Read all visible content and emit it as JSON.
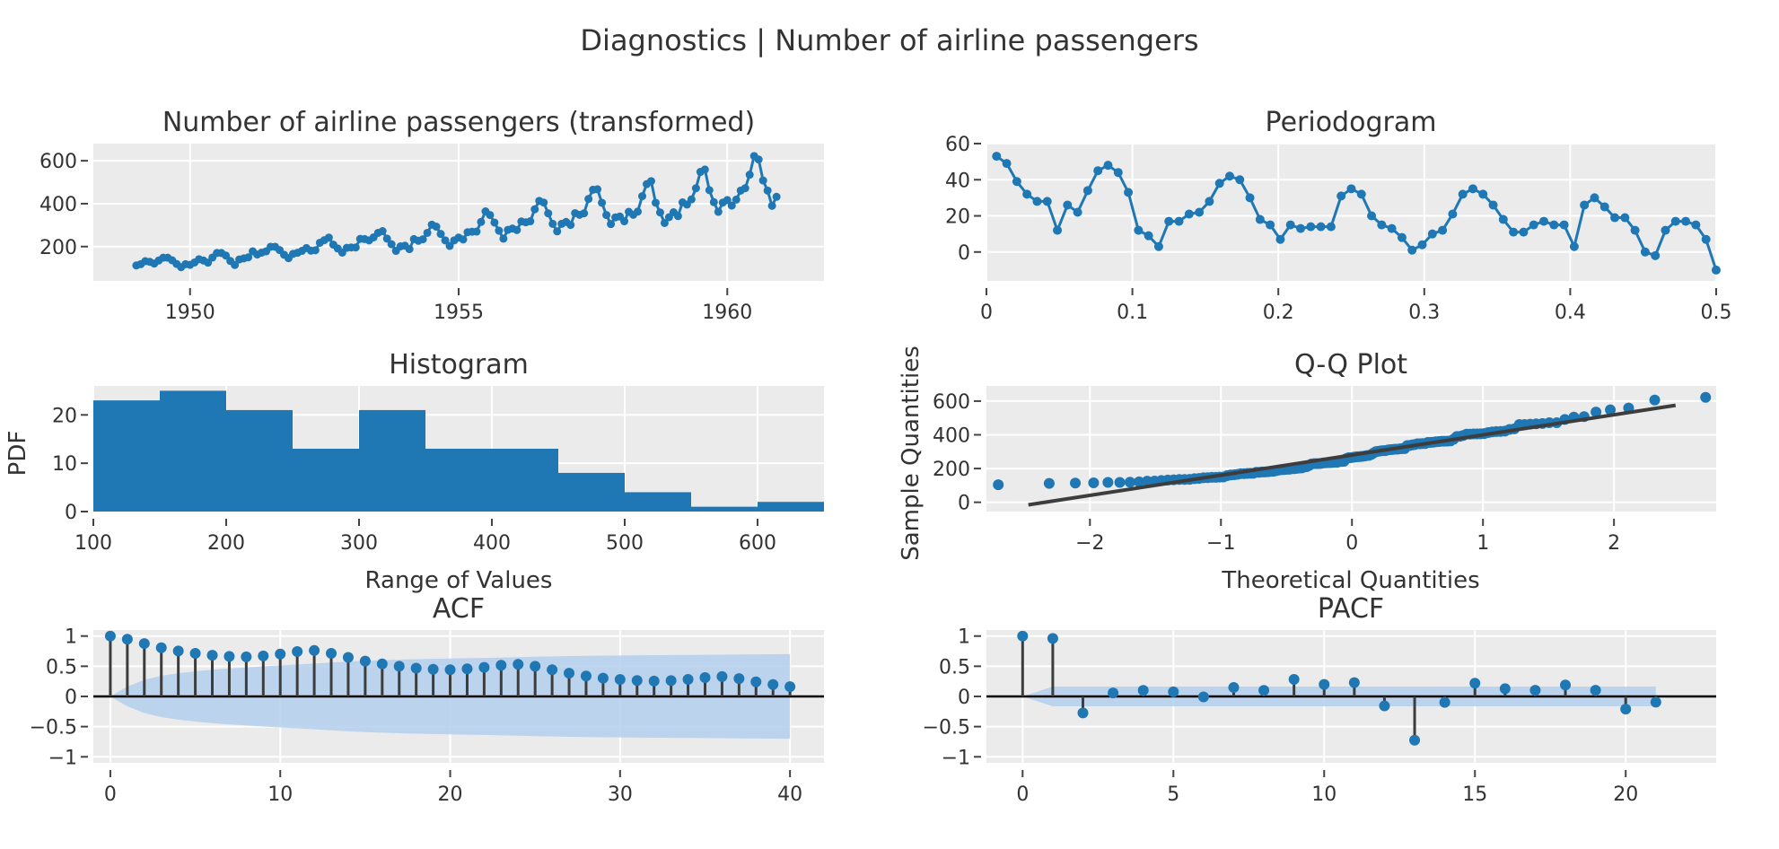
{
  "title": "Diagnostics | Number of airline passengers",
  "colors": {
    "marker": "#1f77b4",
    "stem": "#3d3d3d",
    "band": "#b3cfec",
    "plot_bg": "#ebebeb",
    "grid": "#ffffff",
    "fit_line": "#3d3d3d"
  },
  "chart_data": [
    {
      "id": "series",
      "type": "line",
      "title": "Number of airline passengers (transformed)",
      "xlabel": "",
      "ylabel": "",
      "x_start": "1949-01",
      "x_step": "month",
      "xticks": [
        1950,
        1955,
        1960
      ],
      "yticks": [
        200,
        400,
        600
      ],
      "xlim": [
        1948.2,
        1961.8
      ],
      "ylim": [
        40,
        680
      ],
      "grid": true,
      "values": [
        112,
        118,
        132,
        129,
        121,
        135,
        148,
        148,
        136,
        119,
        104,
        118,
        115,
        126,
        141,
        135,
        125,
        149,
        170,
        170,
        158,
        133,
        114,
        140,
        145,
        150,
        178,
        163,
        172,
        178,
        199,
        199,
        184,
        162,
        146,
        166,
        171,
        180,
        193,
        181,
        183,
        218,
        230,
        242,
        209,
        191,
        172,
        194,
        196,
        196,
        236,
        235,
        229,
        243,
        264,
        272,
        237,
        211,
        180,
        201,
        204,
        188,
        235,
        227,
        234,
        264,
        302,
        293,
        259,
        229,
        203,
        229,
        242,
        233,
        267,
        269,
        270,
        315,
        364,
        347,
        312,
        274,
        237,
        278,
        284,
        277,
        317,
        313,
        318,
        374,
        413,
        405,
        355,
        306,
        271,
        306,
        315,
        301,
        356,
        348,
        355,
        422,
        465,
        467,
        404,
        347,
        305,
        336,
        340,
        318,
        362,
        348,
        363,
        435,
        491,
        505,
        404,
        359,
        310,
        337,
        360,
        342,
        406,
        396,
        420,
        472,
        548,
        559,
        463,
        407,
        362,
        405,
        417,
        391,
        419,
        461,
        472,
        535,
        622,
        606,
        508,
        461,
        390,
        432
      ]
    },
    {
      "id": "periodogram",
      "type": "line",
      "title": "Periodogram",
      "xlabel": "",
      "ylabel": "",
      "xticks": [
        0,
        0.1,
        0.2,
        0.3,
        0.4,
        0.5
      ],
      "xtick_labels": [
        "0",
        "0.1",
        "0.2",
        "0.3",
        "0.4",
        "0.5"
      ],
      "yticks": [
        0,
        20,
        40,
        60
      ],
      "xlim": [
        0,
        0.5
      ],
      "ylim": [
        -16,
        60
      ],
      "grid": true,
      "x_step": 0.006944,
      "values": [
        53,
        49,
        39,
        32,
        28,
        28,
        12,
        26,
        22,
        34,
        45,
        48,
        44,
        33,
        12,
        9,
        3,
        17,
        17,
        21,
        22,
        28,
        38,
        42,
        40,
        30,
        18,
        15,
        7,
        15,
        13,
        14,
        14,
        14,
        31,
        35,
        32,
        20,
        15,
        13,
        8,
        1,
        4,
        10,
        12,
        21,
        32,
        35,
        32,
        26,
        18,
        11,
        11,
        15,
        17,
        15,
        15,
        3,
        26,
        30,
        25,
        19,
        19,
        12,
        0,
        -2,
        12,
        17,
        17,
        15,
        7,
        -10
      ]
    },
    {
      "id": "histogram",
      "type": "bar",
      "title": "Histogram",
      "xlabel": "Range of Values",
      "ylabel": "PDF",
      "xticks": [
        100,
        200,
        300,
        400,
        500,
        600
      ],
      "yticks": [
        0,
        10,
        20
      ],
      "xlim": [
        100,
        650
      ],
      "ylim": [
        0,
        26
      ],
      "grid": true,
      "bin_edges": [
        100,
        150,
        200,
        250,
        300,
        350,
        400,
        450,
        500,
        550,
        600,
        650
      ],
      "values": [
        23,
        25,
        21,
        13,
        21,
        13,
        13,
        8,
        4,
        1,
        2
      ]
    },
    {
      "id": "qq",
      "type": "scatter",
      "title": "Q-Q Plot",
      "xlabel": "Theoretical Quantities",
      "ylabel": "Sample Quantities",
      "xticks": [
        -2,
        -1,
        0,
        1,
        2
      ],
      "xtick_labels": [
        "−2",
        "−1",
        "0",
        "1",
        "2"
      ],
      "yticks": [
        0,
        200,
        400,
        600
      ],
      "xlim": [
        -2.79,
        2.78
      ],
      "ylim": [
        -55,
        690
      ],
      "grid": true,
      "fit_line": {
        "x": [
          -2.47,
          2.47
        ],
        "y": [
          -15,
          575
        ]
      },
      "sample": "sorted values of series",
      "n": 144
    },
    {
      "id": "acf",
      "type": "bar",
      "title": "ACF",
      "xticks": [
        0,
        10,
        20,
        30,
        40
      ],
      "yticks": [
        -1,
        -0.5,
        0,
        0.5,
        1
      ],
      "ytick_labels": [
        "−1",
        "−0.5",
        "0",
        "0.5",
        "1"
      ],
      "xlim": [
        -1,
        42
      ],
      "ylim": [
        -1.1,
        1.1
      ],
      "grid": true,
      "values": [
        1.0,
        0.948,
        0.876,
        0.807,
        0.753,
        0.714,
        0.682,
        0.663,
        0.656,
        0.671,
        0.703,
        0.743,
        0.761,
        0.713,
        0.646,
        0.586,
        0.538,
        0.5,
        0.469,
        0.45,
        0.442,
        0.457,
        0.482,
        0.517,
        0.532,
        0.5,
        0.442,
        0.384,
        0.338,
        0.303,
        0.281,
        0.264,
        0.254,
        0.262,
        0.283,
        0.312,
        0.329,
        0.296,
        0.242,
        0.197,
        0.161
      ],
      "conf_band": [
        0,
        0.163,
        0.275,
        0.342,
        0.385,
        0.417,
        0.442,
        0.463,
        0.481,
        0.498,
        0.513,
        0.529,
        0.545,
        0.562,
        0.577,
        0.59,
        0.601,
        0.609,
        0.616,
        0.622,
        0.628,
        0.633,
        0.638,
        0.644,
        0.651,
        0.658,
        0.664,
        0.669,
        0.673,
        0.676,
        0.679,
        0.681,
        0.683,
        0.685,
        0.687,
        0.689,
        0.692,
        0.695,
        0.697,
        0.699,
        0.701
      ]
    },
    {
      "id": "pacf",
      "type": "bar",
      "title": "PACF",
      "xticks": [
        0,
        5,
        10,
        15,
        20
      ],
      "yticks": [
        -1,
        -0.5,
        0,
        0.5,
        1
      ],
      "ytick_labels": [
        "−1",
        "−0.5",
        "0",
        "0.5",
        "1"
      ],
      "xlim": [
        -1.2,
        23
      ],
      "ylim": [
        -1.1,
        1.1
      ],
      "grid": true,
      "values": [
        1.0,
        0.96,
        -0.273,
        0.058,
        0.101,
        0.077,
        -0.008,
        0.148,
        0.101,
        0.282,
        0.199,
        0.229,
        -0.157,
        -0.725,
        -0.098,
        0.219,
        0.128,
        0.102,
        0.19,
        0.102,
        -0.21,
        -0.095
      ],
      "conf_band_halfwidth": 0.163
    }
  ]
}
